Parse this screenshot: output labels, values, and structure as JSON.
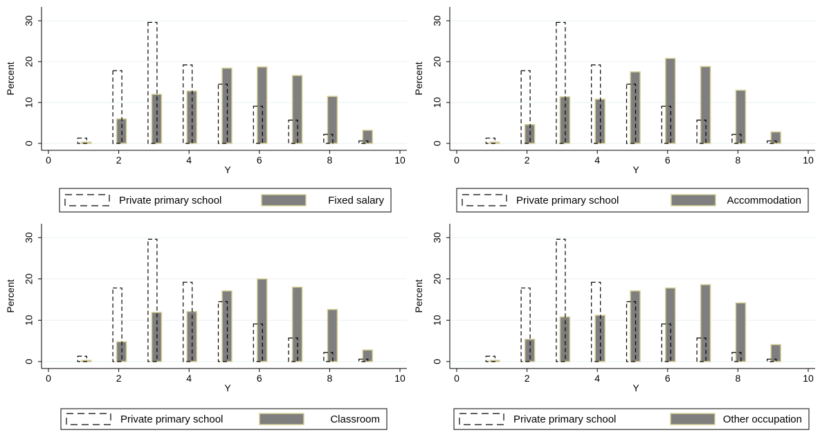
{
  "chart_data": [
    {
      "type": "bar",
      "xlabel": "Y",
      "ylabel": "Percent",
      "xlim": [
        0,
        10
      ],
      "ylim": [
        0,
        30
      ],
      "xticks": [
        0,
        2,
        4,
        6,
        8,
        10
      ],
      "yticks": [
        0,
        10,
        20,
        30
      ],
      "grid": true,
      "legend_position": "bottom",
      "series": [
        {
          "name": "Private primary school",
          "style": "dashed-outline",
          "x": [
            1,
            2,
            3,
            4,
            5,
            6,
            7,
            8,
            9
          ],
          "values": [
            1.3,
            17.8,
            29.6,
            19.2,
            14.5,
            9.1,
            5.7,
            2.2,
            0.6
          ]
        },
        {
          "name": "Fixed salary",
          "style": "filled",
          "x": [
            1,
            2,
            3,
            4,
            5,
            6,
            7,
            8,
            9
          ],
          "values": [
            0.3,
            6.0,
            12.0,
            12.8,
            18.4,
            18.7,
            16.6,
            11.5,
            3.2
          ]
        }
      ]
    },
    {
      "type": "bar",
      "xlabel": "Y",
      "ylabel": "Percent",
      "xlim": [
        0,
        10
      ],
      "ylim": [
        0,
        30
      ],
      "xticks": [
        0,
        2,
        4,
        6,
        8,
        10
      ],
      "yticks": [
        0,
        10,
        20,
        30
      ],
      "grid": true,
      "legend_position": "bottom",
      "series": [
        {
          "name": "Private primary school",
          "style": "dashed-outline",
          "x": [
            1,
            2,
            3,
            4,
            5,
            6,
            7,
            8,
            9
          ],
          "values": [
            1.3,
            17.8,
            29.6,
            19.2,
            14.5,
            9.1,
            5.7,
            2.2,
            0.6
          ]
        },
        {
          "name": "Accommodation",
          "style": "filled",
          "x": [
            1,
            2,
            3,
            4,
            5,
            6,
            7,
            8,
            9
          ],
          "values": [
            0.3,
            4.6,
            11.4,
            10.8,
            17.5,
            20.8,
            18.8,
            13.0,
            2.8
          ]
        }
      ]
    },
    {
      "type": "bar",
      "xlabel": "Y",
      "ylabel": "Percent",
      "xlim": [
        0,
        10
      ],
      "ylim": [
        0,
        30
      ],
      "xticks": [
        0,
        2,
        4,
        6,
        8,
        10
      ],
      "yticks": [
        0,
        10,
        20,
        30
      ],
      "grid": true,
      "legend_position": "bottom",
      "series": [
        {
          "name": "Private primary school",
          "style": "dashed-outline",
          "x": [
            1,
            2,
            3,
            4,
            5,
            6,
            7,
            8,
            9
          ],
          "values": [
            1.3,
            17.8,
            29.6,
            19.2,
            14.5,
            9.1,
            5.7,
            2.2,
            0.6
          ]
        },
        {
          "name": "Classroom",
          "style": "filled",
          "x": [
            1,
            2,
            3,
            4,
            5,
            6,
            7,
            8,
            9
          ],
          "values": [
            0.3,
            4.8,
            11.9,
            12.1,
            17.1,
            20.0,
            18.0,
            12.6,
            2.8
          ]
        }
      ]
    },
    {
      "type": "bar",
      "xlabel": "Y",
      "ylabel": "Percent",
      "xlim": [
        0,
        10
      ],
      "ylim": [
        0,
        30
      ],
      "xticks": [
        0,
        2,
        4,
        6,
        8,
        10
      ],
      "yticks": [
        0,
        10,
        20,
        30
      ],
      "grid": true,
      "legend_position": "bottom",
      "series": [
        {
          "name": "Private primary school",
          "style": "dashed-outline",
          "x": [
            1,
            2,
            3,
            4,
            5,
            6,
            7,
            8,
            9
          ],
          "values": [
            1.3,
            17.8,
            29.6,
            19.2,
            14.5,
            9.1,
            5.7,
            2.2,
            0.6
          ]
        },
        {
          "name": "Other occupation",
          "style": "filled",
          "x": [
            1,
            2,
            3,
            4,
            5,
            6,
            7,
            8,
            9
          ],
          "values": [
            0.3,
            5.4,
            10.8,
            11.2,
            17.1,
            17.8,
            18.6,
            14.2,
            4.1
          ]
        }
      ]
    }
  ],
  "colors": {
    "bar_fill": "#7f7f7f",
    "bar_edge": "#d6cf95",
    "outline": "#000000",
    "grid": "#eaf2f3",
    "background": "#ffffff"
  }
}
